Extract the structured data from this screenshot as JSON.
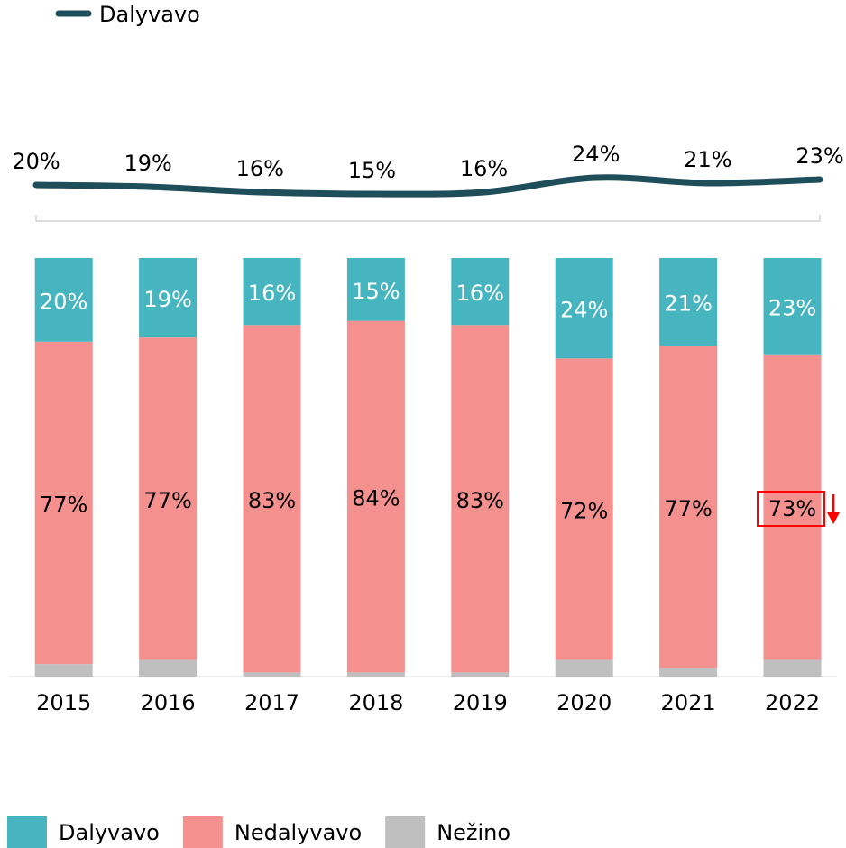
{
  "chart_data": [
    {
      "type": "bar",
      "stacked": true,
      "categories": [
        "2015",
        "2016",
        "2017",
        "2018",
        "2019",
        "2020",
        "2021",
        "2022"
      ],
      "series": [
        {
          "name": "Nežino",
          "color": "#bfbfbf",
          "values": [
            3,
            4,
            1,
            1,
            1,
            4,
            2,
            4
          ]
        },
        {
          "name": "Nedalyvavo",
          "color": "#f4918e",
          "values": [
            77,
            77,
            83,
            84,
            83,
            72,
            77,
            73
          ],
          "value_labels": [
            "77%",
            "77%",
            "83%",
            "84%",
            "83%",
            "72%",
            "77%",
            "73%"
          ]
        },
        {
          "name": "Dalyvavo",
          "color": "#47b5c0",
          "values": [
            20,
            19,
            16,
            15,
            16,
            24,
            21,
            23
          ],
          "value_labels": [
            "20%",
            "19%",
            "16%",
            "15%",
            "16%",
            "24%",
            "21%",
            "23%"
          ]
        }
      ],
      "ylim": [
        0,
        100
      ]
    },
    {
      "type": "line",
      "series": [
        {
          "name": "Dalyvavo",
          "color": "#1e4e5a",
          "values": [
            20,
            19,
            16,
            15,
            16,
            24,
            21,
            23
          ],
          "value_labels": [
            "20%",
            "19%",
            "16%",
            "15%",
            "16%",
            "24%",
            "21%",
            "23%"
          ]
        }
      ],
      "ylim": [
        0,
        100
      ]
    }
  ]
}
